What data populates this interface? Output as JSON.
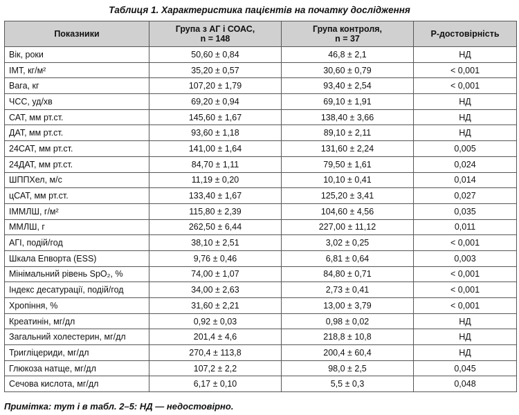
{
  "caption": "Таблиця 1. Характеристика пацієнтів на початку дослідження",
  "headers": [
    "Показники",
    "Група з АГ і СОАС,\nn = 148",
    "Група контроля,\nn = 37",
    "Р-достовірність"
  ],
  "rows": [
    {
      "name": "Вік, роки",
      "g1": "50,60 ± 0,84",
      "g2": "46,8 ± 2,1",
      "p": "НД"
    },
    {
      "name": "ІМТ, кг/м²",
      "g1": "35,20 ± 0,57",
      "g2": "30,60 ± 0,79",
      "p": "< 0,001"
    },
    {
      "name": "Вага, кг",
      "g1": "107,20 ± 1,79",
      "g2": "93,40 ± 2,54",
      "p": "< 0,001"
    },
    {
      "name": "ЧСС, уд/хв",
      "g1": "69,20 ± 0,94",
      "g2": "69,10 ± 1,91",
      "p": "НД"
    },
    {
      "name": "САТ, мм рт.ст.",
      "g1": "145,60 ± 1,67",
      "g2": "138,40 ± 3,66",
      "p": "НД"
    },
    {
      "name": "ДАТ, мм рт.ст.",
      "g1": "93,60 ± 1,18",
      "g2": "89,10 ± 2,11",
      "p": "НД"
    },
    {
      "name": "24САТ, мм рт.ст.",
      "g1": "141,00 ± 1,64",
      "g2": "131,60 ± 2,24",
      "p": "0,005"
    },
    {
      "name": "24ДАТ, мм рт.ст.",
      "g1": "84,70 ± 1,11",
      "g2": "79,50 ± 1,61",
      "p": "0,024"
    },
    {
      "name": "ШППХел, м/с",
      "g1": "11,19 ± 0,20",
      "g2": "10,10 ± 0,41",
      "p": "0,014"
    },
    {
      "name": "цСАТ, мм рт.ст.",
      "g1": "133,40 ± 1,67",
      "g2": "125,20 ± 3,41",
      "p": "0,027"
    },
    {
      "name": "ІММЛШ, г/м²",
      "g1": "115,80 ± 2,39",
      "g2": "104,60 ± 4,56",
      "p": "0,035"
    },
    {
      "name": "ММЛШ, г",
      "g1": "262,50 ± 6,44",
      "g2": "227,00 ± 11,12",
      "p": "0,011"
    },
    {
      "name": "АГІ, подій/год",
      "g1": "38,10 ± 2,51",
      "g2": "3,02 ± 0,25",
      "p": "< 0,001"
    },
    {
      "name": "Шкала Епворта (ESS)",
      "g1": "9,76 ± 0,46",
      "g2": "6,81 ± 0,64",
      "p": "0,003"
    },
    {
      "name": "Мінімальний рівень SpO₂, %",
      "g1": "74,00 ± 1,07",
      "g2": "84,80 ± 0,71",
      "p": "< 0,001"
    },
    {
      "name": "Індекс десатурації, подій/год",
      "g1": "34,00 ± 2,63",
      "g2": "2,73 ± 0,41",
      "p": "< 0,001"
    },
    {
      "name": "Хропіння, %",
      "g1": "31,60 ± 2,21",
      "g2": "13,00 ± 3,79",
      "p": "< 0,001"
    },
    {
      "name": "Креатинін, мг/дл",
      "g1": "0,92 ± 0,03",
      "g2": "0,98 ± 0,02",
      "p": "НД"
    },
    {
      "name": "Загальний холестерин, мг/дл",
      "g1": "201,4 ± 4,6",
      "g2": "218,8 ± 10,8",
      "p": "НД"
    },
    {
      "name": "Тригліцериди, мг/дл",
      "g1": "270,4 ± 113,8",
      "g2": "200,4 ± 60,4",
      "p": "НД"
    },
    {
      "name": "Глюкоза натще, мг/дл",
      "g1": "107,2 ± 2,2",
      "g2": "98,0 ± 2,5",
      "p": "0,045"
    },
    {
      "name": "Сечова кислота, мг/дл",
      "g1": "6,17 ± 0,10",
      "g2": "5,5 ± 0,3",
      "p": "0,048"
    }
  ],
  "note": "Примітка: тут і в табл. 2–5: НД — недостовірно."
}
